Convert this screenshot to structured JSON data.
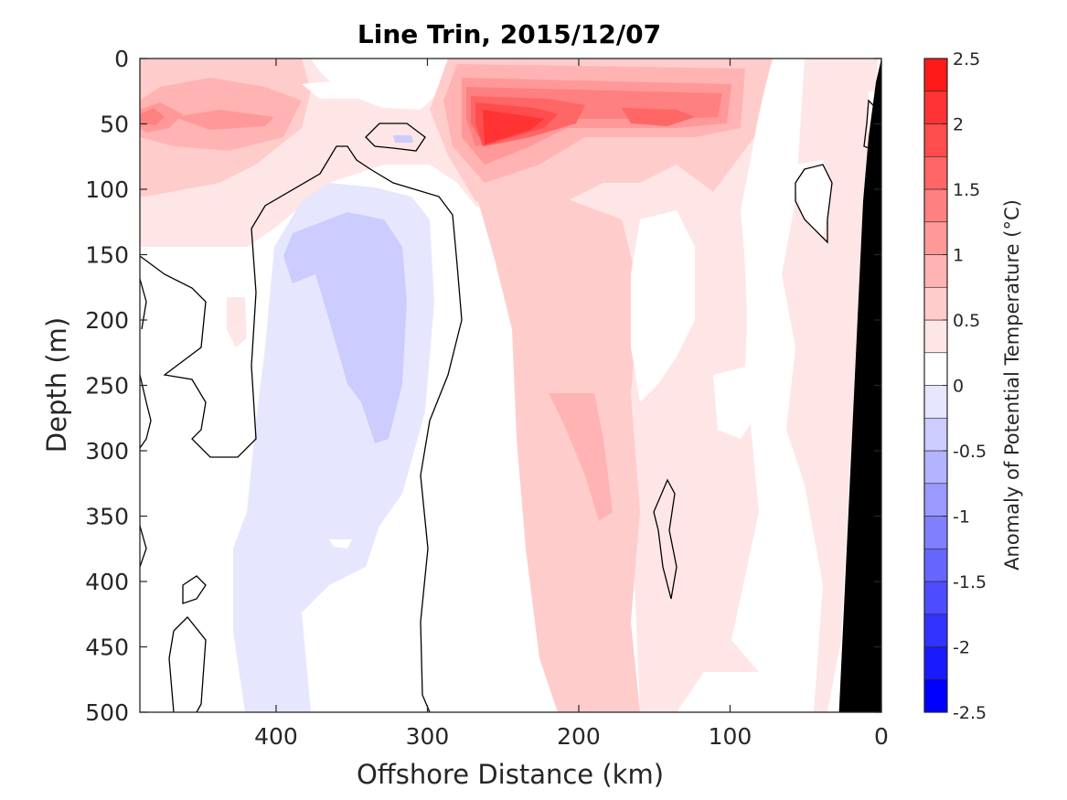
{
  "chart_data": {
    "type": "heatmap",
    "title": "Line Trin, 2015/12/07",
    "xlabel": "Offshore Distance (km)",
    "ylabel": "Depth (m)",
    "xlim": [
      490,
      0
    ],
    "ylim": [
      0,
      500
    ],
    "x_reversed": true,
    "y_reversed": true,
    "x_ticks": [
      400,
      300,
      200,
      100,
      0
    ],
    "y_ticks": [
      0,
      50,
      100,
      150,
      200,
      250,
      300,
      350,
      400,
      450,
      500
    ],
    "colorbar": {
      "label": "Anomaly of Potential Temperature (°C)",
      "range": [
        -2.5,
        2.5
      ],
      "ticks": [
        2.5,
        2,
        1.5,
        1,
        0.5,
        0,
        -0.5,
        -1,
        -1.5,
        -2,
        -2.5
      ],
      "tick_labels": [
        "2.5",
        "2",
        "1.5",
        "1",
        "0.5",
        "0",
        "-0.5",
        "-1",
        "-1.5",
        "-2",
        "-2.5"
      ],
      "levels": [
        -2.5,
        -2.25,
        -2,
        -1.75,
        -1.5,
        -1.25,
        -1,
        -0.75,
        -0.5,
        -0.25,
        0,
        0.25,
        0.5,
        0.75,
        1,
        1.25,
        1.5,
        1.75,
        2,
        2.25,
        2.5
      ],
      "colors": [
        "#0000ff",
        "#1a1aff",
        "#3333ff",
        "#4d4dff",
        "#6666ff",
        "#8080ff",
        "#9999ff",
        "#b3b3ff",
        "#ccccff",
        "#e6e6ff",
        "#ffffff",
        "#ffe6e6",
        "#ffcccc",
        "#ffb3b3",
        "#ff9999",
        "#ff8080",
        "#ff6666",
        "#ff4d4d",
        "#ff3333",
        "#ff1a1a"
      ]
    },
    "features": [
      {
        "name": "warm-surface-core-offshore",
        "x": [
          490,
          380
        ],
        "depth": [
          20,
          140
        ],
        "anomaly": 1.5
      },
      {
        "name": "warm-surface-core-central",
        "x": [
          280,
          110
        ],
        "depth": [
          10,
          170
        ],
        "anomaly": 2.2
      },
      {
        "name": "cold-tongue",
        "x": [
          420,
          300
        ],
        "depth": [
          90,
          500
        ],
        "anomaly": -0.5
      },
      {
        "name": "warm-column-central",
        "x": [
          270,
          170
        ],
        "depth": [
          150,
          500
        ],
        "anomaly": 0.75
      },
      {
        "name": "bathymetry",
        "x": [
          28,
          0
        ],
        "depth": [
          0,
          500
        ],
        "color": "#000000"
      }
    ],
    "zero_contour_color": "#000000",
    "grid": false
  }
}
